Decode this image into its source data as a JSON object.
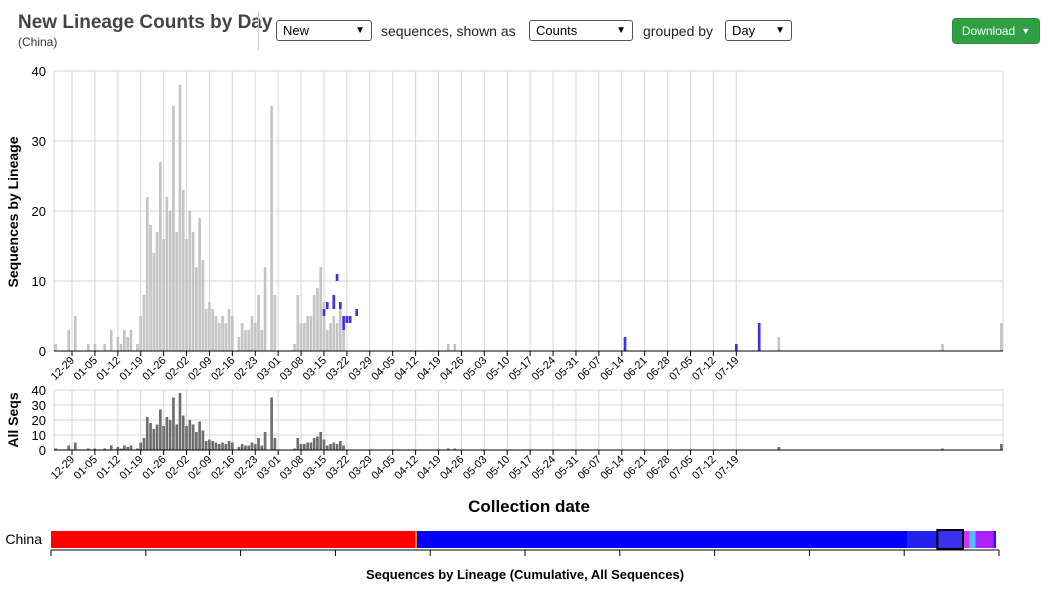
{
  "header": {
    "title": "New Lineage Counts by Day",
    "subtitle": "(China)",
    "select_mode": "New",
    "label_sequences": "sequences, shown as",
    "select_display": "Counts",
    "label_grouped": "grouped by",
    "select_group": "Day",
    "download_label": "Download"
  },
  "colors": {
    "grey_bar": "#c4c4c4",
    "dark_bar": "#6e6e6e",
    "lineage_blue": "#3b2ff0",
    "red": "#ff0000",
    "blue": "#0000ff"
  },
  "chart_data": [
    {
      "type": "bar",
      "ylabel": "Sequences by Lineage",
      "xlabel": "Collection date",
      "ylim": [
        0,
        40
      ],
      "yticks": [
        0,
        10,
        20,
        30,
        40
      ],
      "grid": true,
      "x_start": "12-24",
      "xticks": [
        "12-29",
        "01-05",
        "01-12",
        "01-19",
        "01-26",
        "02-02",
        "02-09",
        "02-16",
        "02-23",
        "03-01",
        "03-08",
        "03-15",
        "03-22",
        "03-29",
        "04-05",
        "04-12",
        "04-19",
        "04-26",
        "05-03",
        "05-10",
        "05-17",
        "05-24",
        "05-31",
        "06-07",
        "06-14",
        "06-21",
        "06-28",
        "07-05",
        "07-12",
        "07-19"
      ],
      "series": [
        {
          "values": [
            1,
            0,
            0,
            0,
            3,
            0,
            5,
            0,
            0,
            0,
            1,
            0,
            1,
            0,
            0,
            1,
            0,
            3,
            0,
            2,
            1,
            3,
            2,
            3,
            0,
            1,
            5,
            8,
            22,
            18,
            14,
            17,
            27,
            16,
            22,
            20,
            35,
            17,
            38,
            23,
            16,
            20,
            17,
            12,
            19,
            13,
            6,
            7,
            6,
            5,
            4,
            5,
            4,
            6,
            5,
            0,
            2,
            4,
            3,
            3,
            5,
            4,
            8,
            3,
            12,
            0,
            35,
            8,
            0,
            0,
            0,
            0,
            0,
            1,
            8,
            4,
            4,
            5,
            5,
            8,
            9,
            12,
            7,
            3,
            4,
            5,
            4,
            6,
            3,
            0,
            0,
            0,
            0,
            0,
            0,
            0,
            0,
            0,
            0,
            0,
            0,
            0,
            0,
            0,
            0,
            0,
            0,
            0,
            0,
            0,
            0,
            0,
            0,
            0,
            0,
            0,
            0,
            0,
            0,
            0,
            1,
            0,
            1,
            0,
            0,
            0,
            0,
            0,
            0,
            0,
            0,
            0,
            0,
            0,
            0,
            0,
            0,
            0,
            0,
            0,
            0,
            0,
            0,
            0,
            0,
            0,
            0,
            0,
            0,
            0,
            0,
            0,
            0,
            0,
            0,
            0,
            0,
            0,
            0,
            0,
            0,
            0,
            0,
            0,
            0,
            0,
            0,
            0,
            0,
            0,
            0,
            0,
            0,
            0,
            0,
            0,
            0,
            0,
            0,
            0,
            0,
            0,
            0,
            0,
            0,
            0,
            0,
            0,
            0,
            0,
            0,
            0,
            0,
            0,
            0,
            0,
            0,
            0,
            0,
            0,
            0,
            0,
            0,
            0,
            0,
            0,
            0,
            0,
            0,
            0,
            0,
            0,
            0,
            0,
            0,
            0,
            0,
            0,
            0,
            0,
            0,
            2,
            0,
            0,
            0,
            0,
            0,
            0,
            0,
            0,
            0,
            0,
            0,
            0,
            0,
            0,
            0,
            0,
            0,
            0,
            0,
            0,
            0,
            0,
            0,
            0,
            0,
            0,
            0,
            0,
            0,
            0,
            0,
            0,
            0,
            0,
            0,
            0,
            0,
            0,
            0,
            0,
            0,
            0,
            0,
            0,
            0,
            0,
            0,
            0,
            0,
            1,
            0,
            0,
            0,
            0,
            0,
            0,
            0,
            0,
            0,
            0,
            0,
            0,
            0,
            0,
            0,
            0,
            0,
            4
          ]
        }
      ],
      "highlight_segments": [
        {
          "day": 82,
          "lo": 5,
          "hi": 6
        },
        {
          "day": 83,
          "lo": 6,
          "hi": 7
        },
        {
          "day": 85,
          "lo": 6,
          "hi": 8
        },
        {
          "day": 86,
          "lo": 10,
          "hi": 11
        },
        {
          "day": 87,
          "lo": 6,
          "hi": 7
        },
        {
          "day": 88,
          "lo": 3,
          "hi": 4
        },
        {
          "day": 88,
          "lo": 4,
          "hi": 5
        },
        {
          "day": 89,
          "lo": 4,
          "hi": 5
        },
        {
          "day": 90,
          "lo": 4,
          "hi": 5
        },
        {
          "day": 92,
          "lo": 5,
          "hi": 6
        },
        {
          "day": 174,
          "lo": 0,
          "hi": 2
        },
        {
          "day": 208,
          "lo": 0,
          "hi": 1
        },
        {
          "day": 215,
          "lo": 0,
          "hi": 4
        }
      ]
    },
    {
      "type": "bar",
      "ylabel": "All Seqs",
      "ylim": [
        0,
        40
      ],
      "yticks": [
        0,
        10,
        20,
        30,
        40
      ],
      "grid": true
    },
    {
      "type": "bar",
      "orientation": "horizontal-stacked",
      "category": "China",
      "xlabel": "Sequences by Lineage  (Cumulative, All Sequences)",
      "segments": [
        {
          "value": 38.4,
          "color": "#ff0000"
        },
        {
          "value": 0.2,
          "color": "#ff8800"
        },
        {
          "value": 51.7,
          "color": "#0000ff"
        },
        {
          "value": 3.2,
          "color": "#2222ee"
        },
        {
          "value": 2.7,
          "color": "#3b2ff0"
        },
        {
          "value": 0.7,
          "color": "#cc33ff"
        },
        {
          "value": 0.6,
          "color": "#55bbff"
        },
        {
          "value": 1.9,
          "color": "#aa22ff"
        },
        {
          "value": 0.3,
          "color": "#1a1aff"
        },
        {
          "value": 0.3,
          "color": "#ffffff"
        }
      ]
    }
  ]
}
